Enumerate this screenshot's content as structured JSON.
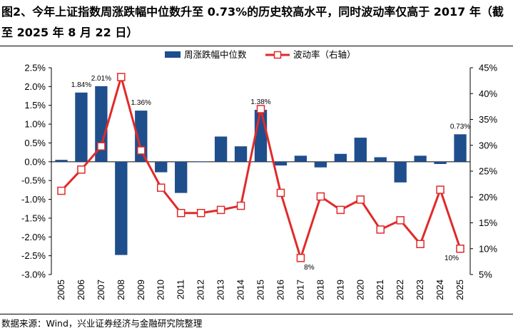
{
  "header": {
    "title": "图2、今年上证指数周涨跌幅中位数升至 0.73%的历史较高水平，同时波动率仅高于 2017 年（截至 2025 年 8 月 22 日）"
  },
  "footer": {
    "source": "数据来源：Wind，兴业证券经济与金融研究院整理"
  },
  "chart_data": {
    "type": "bar+line",
    "categories": [
      "2005",
      "2006",
      "2007",
      "2008",
      "2009",
      "2010",
      "2011",
      "2012",
      "2013",
      "2014",
      "2015",
      "2016",
      "2017",
      "2018",
      "2019",
      "2020",
      "2021",
      "2022",
      "2023",
      "2024",
      "2025"
    ],
    "series": [
      {
        "name": "周涨跌幅中位数",
        "type": "bar",
        "axis": "left",
        "color": "#1f4e8c",
        "values": [
          0.05,
          1.84,
          2.01,
          -2.48,
          1.36,
          -0.28,
          -0.83,
          0.01,
          0.67,
          0.41,
          1.38,
          -0.1,
          0.16,
          -0.15,
          0.21,
          0.64,
          0.12,
          -0.55,
          0.16,
          -0.06,
          0.73
        ]
      },
      {
        "name": "波动率（右轴）",
        "type": "line",
        "axis": "right",
        "color": "#e02a2a",
        "values": [
          21.2,
          25.3,
          29.8,
          43.2,
          29.0,
          21.8,
          16.9,
          16.9,
          17.5,
          18.3,
          37.0,
          20.8,
          8.2,
          20.1,
          17.5,
          19.5,
          13.7,
          15.5,
          10.9,
          21.4,
          10.0
        ]
      }
    ],
    "bar_labels": [
      {
        "index": 1,
        "text": "1.84%"
      },
      {
        "index": 2,
        "text": "2.01%"
      },
      {
        "index": 4,
        "text": "1.36%"
      },
      {
        "index": 10,
        "text": "1.38%"
      },
      {
        "index": 20,
        "text": "0.73%"
      }
    ],
    "line_labels": [
      {
        "index": 12,
        "text": "8%"
      },
      {
        "index": 20,
        "text": "10%"
      }
    ],
    "left_axis": {
      "min": -3.0,
      "max": 2.5,
      "step": 0.5,
      "ticks": [
        "-3.0%",
        "-2.5%",
        "-2.0%",
        "-1.5%",
        "-1.0%",
        "-0.5%",
        "0.0%",
        "0.5%",
        "1.0%",
        "1.5%",
        "2.0%",
        "2.5%"
      ]
    },
    "right_axis": {
      "min": 5,
      "max": 45,
      "step": 5,
      "ticks": [
        "5%",
        "10%",
        "15%",
        "20%",
        "25%",
        "30%",
        "35%",
        "40%",
        "45%"
      ]
    },
    "legend": {
      "position": "top-center"
    }
  }
}
